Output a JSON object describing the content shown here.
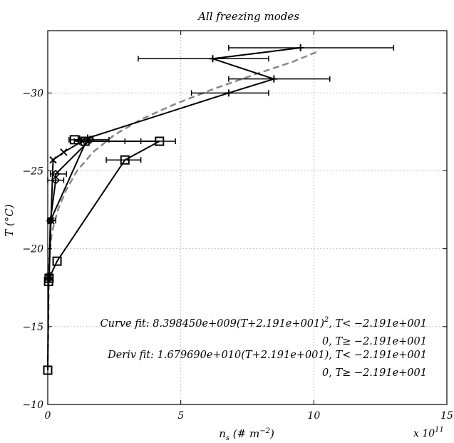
{
  "chart_data": {
    "type": "scatter",
    "title": "All freezing modes",
    "xlabel": "n",
    "xlabel_sub": "s",
    "xlabel_units_open": " (# m",
    "xlabel_units_exp": "−2",
    "xlabel_units_close": ")",
    "ylabel": "T (°C)",
    "xlim": [
      0,
      15
    ],
    "ylim": [
      -10,
      -34
    ],
    "x_multiplier_label": "x 10",
    "x_multiplier_exp": "11",
    "x_ticks": [
      0,
      5,
      10,
      15
    ],
    "x_tick_labels": [
      "0",
      "5",
      "10",
      "15"
    ],
    "y_ticks": [
      -10,
      -15,
      -20,
      -25,
      -30
    ],
    "y_tick_labels": [
      "−10",
      "−15",
      "−20",
      "−25",
      "−30"
    ],
    "grid": true,
    "annotations": [
      {
        "parts": [
          "Curve fit: 8.398450e+009(T+2.191e+001)",
          "2",
          ", T< −2.191e+001"
        ]
      },
      {
        "parts": [
          "0, T≥ −2.191e+001"
        ]
      },
      {
        "parts": [
          "Deriv fit: 1.679690e+010(T+2.191e+001), T< −2.191e+001"
        ]
      },
      {
        "parts": [
          "0, T≥ −2.191e+001"
        ]
      }
    ],
    "series": [
      {
        "marker": "plus-errorbar",
        "points": [
          {
            "x": 9.5,
            "y": -32.9,
            "xerr_lo": 6.8,
            "xerr_hi": 13.0
          },
          {
            "x": 6.2,
            "y": -32.2,
            "xerr_lo": 3.4,
            "xerr_hi": 8.3
          },
          {
            "x": 8.5,
            "y": -30.9,
            "xerr_lo": 6.8,
            "xerr_hi": 10.6
          },
          {
            "x": 6.8,
            "y": -30.0,
            "xerr_lo": 5.4,
            "xerr_hi": 8.3
          },
          {
            "x": 1.5,
            "y": -27.1,
            "xerr_lo": 1.2,
            "xerr_hi": 1.7
          },
          {
            "x": 0.1,
            "y": -21.8,
            "xerr_lo": 0.0,
            "xerr_hi": 0.3
          },
          {
            "x": 0.05,
            "y": -18.3,
            "xerr_lo": 0.0,
            "xerr_hi": 0.1
          },
          {
            "x": 0.03,
            "y": -18.0,
            "xerr_lo": 0.0,
            "xerr_hi": 0.06
          }
        ]
      },
      {
        "marker": "x",
        "points": [
          {
            "x": 1.3,
            "y": -26.9
          },
          {
            "x": 0.6,
            "y": -26.2
          },
          {
            "x": 0.2,
            "y": -25.7
          },
          {
            "x": 0.12,
            "y": -21.8
          },
          {
            "x": 0.05,
            "y": -18.2
          }
        ]
      },
      {
        "marker": "diamond-errorbar",
        "points": [
          {
            "x": 1.6,
            "y": -27.0,
            "xerr_lo": 0.8,
            "xerr_hi": 2.3
          },
          {
            "x": 0.3,
            "y": -24.8,
            "xerr_lo": 0.1,
            "xerr_hi": 0.7
          },
          {
            "x": 0.3,
            "y": -24.4,
            "xerr_lo": 0.0,
            "xerr_hi": 0.6
          },
          {
            "x": 0.1,
            "y": -21.8,
            "xerr_lo": 0.0,
            "xerr_hi": 0.2
          },
          {
            "x": 0.05,
            "y": -18.1,
            "xerr_lo": 0.0,
            "xerr_hi": 0.1
          }
        ]
      },
      {
        "marker": "square-errorbar",
        "points": [
          {
            "x": 1.0,
            "y": -27.0
          },
          {
            "x": 1.4,
            "y": -26.9,
            "xerr_lo": 1.0,
            "xerr_hi": 3.5
          },
          {
            "x": 4.2,
            "y": -26.9,
            "xerr_lo": 2.9,
            "xerr_hi": 4.8
          },
          {
            "x": 2.9,
            "y": -25.7,
            "xerr_lo": 2.2,
            "xerr_hi": 3.5
          },
          {
            "x": 0.35,
            "y": -19.2
          },
          {
            "x": 0.05,
            "y": -18.1
          },
          {
            "x": 0.03,
            "y": -17.9
          },
          {
            "x": 0.0,
            "y": -12.2
          }
        ]
      }
    ],
    "fit_curve": {
      "style": "dashed",
      "color": "#888888",
      "points": [
        {
          "x": 0.0,
          "y": -12.2
        },
        {
          "x": 0.05,
          "y": -19.2
        },
        {
          "x": 0.15,
          "y": -21.0
        },
        {
          "x": 0.38,
          "y": -22.5
        },
        {
          "x": 0.7,
          "y": -23.8
        },
        {
          "x": 1.1,
          "y": -25.0
        },
        {
          "x": 1.7,
          "y": -26.2
        },
        {
          "x": 2.5,
          "y": -27.3
        },
        {
          "x": 3.5,
          "y": -28.3
        },
        {
          "x": 4.8,
          "y": -29.3
        },
        {
          "x": 6.3,
          "y": -30.3
        },
        {
          "x": 7.8,
          "y": -31.2
        },
        {
          "x": 9.2,
          "y": -32.0
        },
        {
          "x": 10.2,
          "y": -32.7
        }
      ]
    },
    "colors": {
      "series": "#000000",
      "fit": "#888888",
      "grid": "#b0b0b0"
    }
  }
}
